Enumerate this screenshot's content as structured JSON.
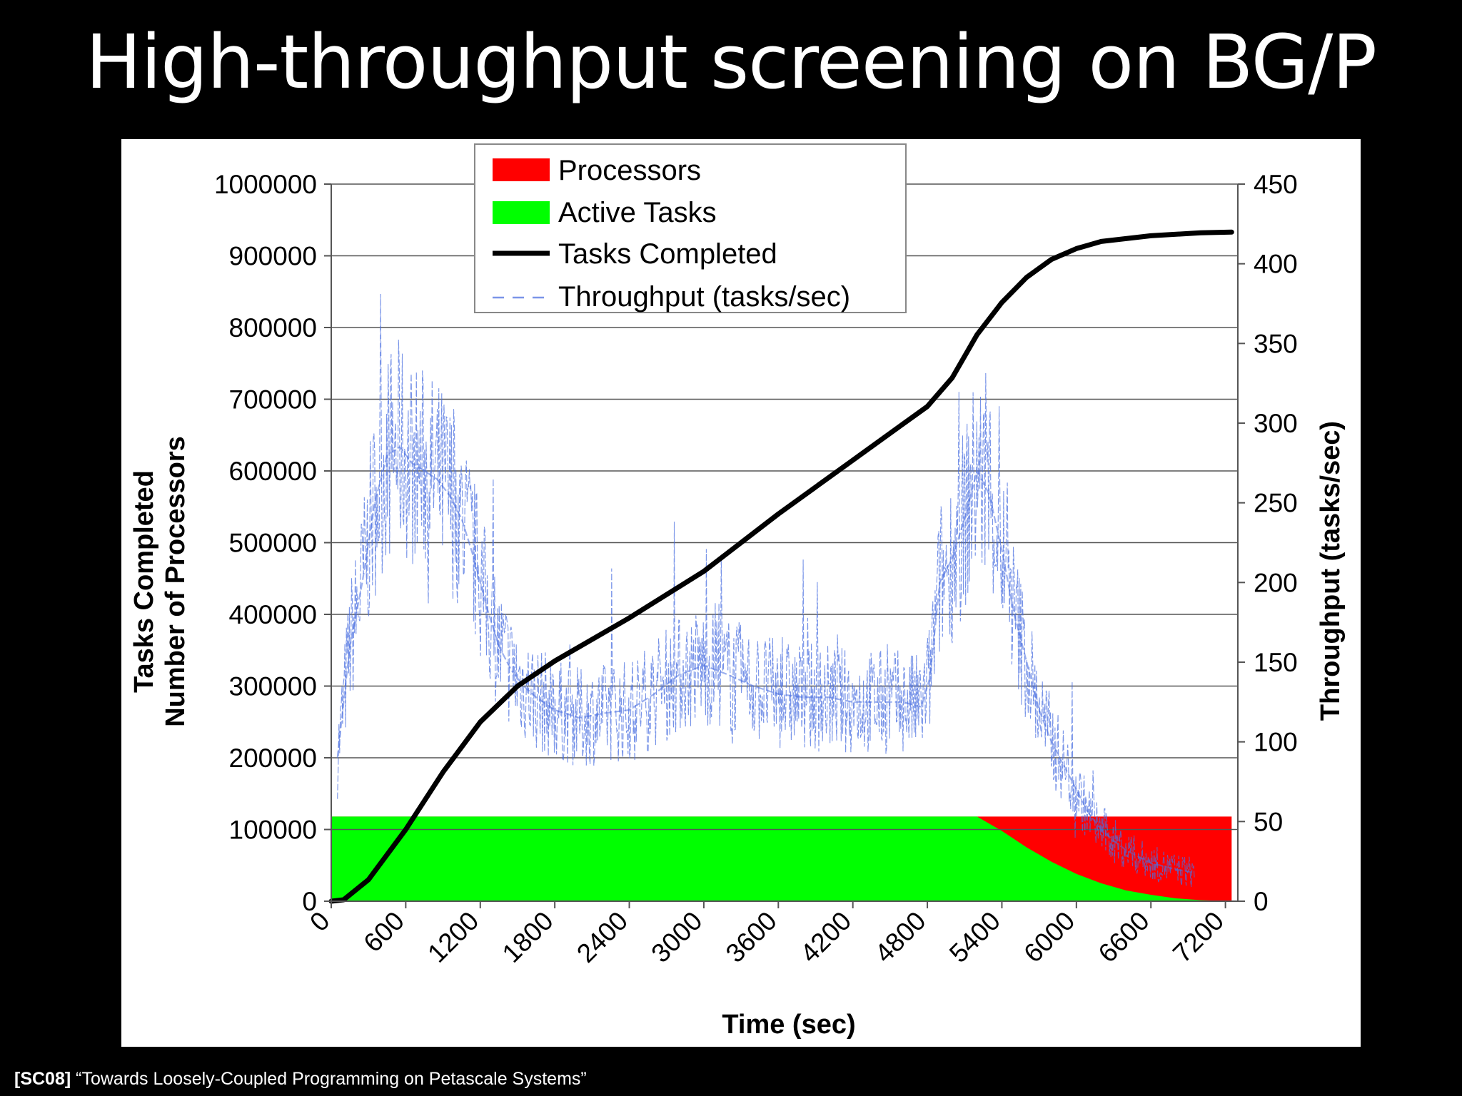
{
  "slide": {
    "title": "High-throughput screening on BG/P",
    "footer_ref": "[SC08]",
    "footer_text": " “Towards Loosely-Coupled Programming on Petascale Systems”"
  },
  "chart_data": {
    "type": "line",
    "xlabel": "Time (sec)",
    "ylabel_line1": "Tasks Completed",
    "ylabel_line2": "Number of Processors",
    "y2label": "Throughput (tasks/sec)",
    "xlim": [
      0,
      7300
    ],
    "ylim": [
      0,
      1000000
    ],
    "y2lim": [
      0,
      450
    ],
    "x_ticks": [
      0,
      600,
      1200,
      1800,
      2400,
      3000,
      3600,
      4200,
      4800,
      5400,
      6000,
      6600,
      7200
    ],
    "y_ticks": [
      0,
      100000,
      200000,
      300000,
      400000,
      500000,
      600000,
      700000,
      800000,
      900000,
      1000000
    ],
    "y2_ticks": [
      0,
      50,
      100,
      150,
      200,
      250,
      300,
      350,
      400,
      450
    ],
    "grid": true,
    "legend_position": "top-center",
    "legend": [
      {
        "label": "Processors",
        "style": "red-box"
      },
      {
        "label": "Active Tasks",
        "style": "green-box"
      },
      {
        "label": "Tasks Completed",
        "style": "black-line"
      },
      {
        "label": "Throughput (tasks/sec)",
        "style": "blue-dash"
      }
    ],
    "colors": {
      "processors": "#ff0000",
      "active_tasks": "#00ff00",
      "tasks_completed": "#000000",
      "throughput": "#4a6fe0"
    },
    "series": [
      {
        "name": "Processors",
        "axis": "left",
        "x": [
          0,
          100,
          7250
        ],
        "y": [
          118000,
          118000,
          118000
        ]
      },
      {
        "name": "Active Tasks",
        "axis": "left",
        "x": [
          0,
          100,
          5200,
          5400,
          5600,
          5800,
          6000,
          6200,
          6400,
          6600,
          6800,
          7000,
          7250
        ],
        "y": [
          118000,
          118000,
          118000,
          98000,
          75000,
          55000,
          38000,
          25000,
          15000,
          9000,
          4000,
          1500,
          0
        ]
      },
      {
        "name": "Tasks Completed",
        "axis": "left",
        "x": [
          0,
          100,
          300,
          600,
          900,
          1200,
          1500,
          1800,
          2400,
          3000,
          3600,
          4200,
          4800,
          5000,
          5200,
          5400,
          5600,
          5800,
          6000,
          6200,
          6600,
          7000,
          7250
        ],
        "y": [
          0,
          2000,
          30000,
          100000,
          180000,
          250000,
          300000,
          335000,
          395000,
          460000,
          540000,
          615000,
          690000,
          730000,
          790000,
          835000,
          870000,
          895000,
          910000,
          920000,
          928000,
          932000,
          933000
        ],
        "mark": "thick-line"
      },
      {
        "name": "Throughput (tasks/sec)",
        "axis": "right",
        "x": [
          50,
          150,
          250,
          350,
          450,
          550,
          650,
          750,
          850,
          950,
          1050,
          1150,
          1250,
          1350,
          1450,
          1550,
          1650,
          1800,
          2000,
          2200,
          2400,
          2600,
          2800,
          3000,
          3200,
          3400,
          3600,
          3800,
          4000,
          4200,
          4400,
          4600,
          4750,
          4820,
          4900,
          5000,
          5100,
          5200,
          5300,
          5400,
          5500,
          5600,
          5700,
          5800,
          5900,
          6000,
          6100,
          6200,
          6300,
          6400,
          6500,
          6600,
          6700,
          6800,
          6950
        ],
        "y": [
          90,
          160,
          200,
          250,
          280,
          285,
          275,
          270,
          265,
          255,
          240,
          215,
          185,
          160,
          145,
          135,
          128,
          120,
          115,
          118,
          120,
          130,
          142,
          148,
          142,
          135,
          130,
          128,
          128,
          125,
          125,
          125,
          122,
          140,
          200,
          215,
          240,
          270,
          255,
          220,
          180,
          150,
          120,
          100,
          85,
          70,
          55,
          45,
          38,
          32,
          28,
          24,
          22,
          20,
          18
        ],
        "mark": "dashed-noisy"
      }
    ]
  }
}
